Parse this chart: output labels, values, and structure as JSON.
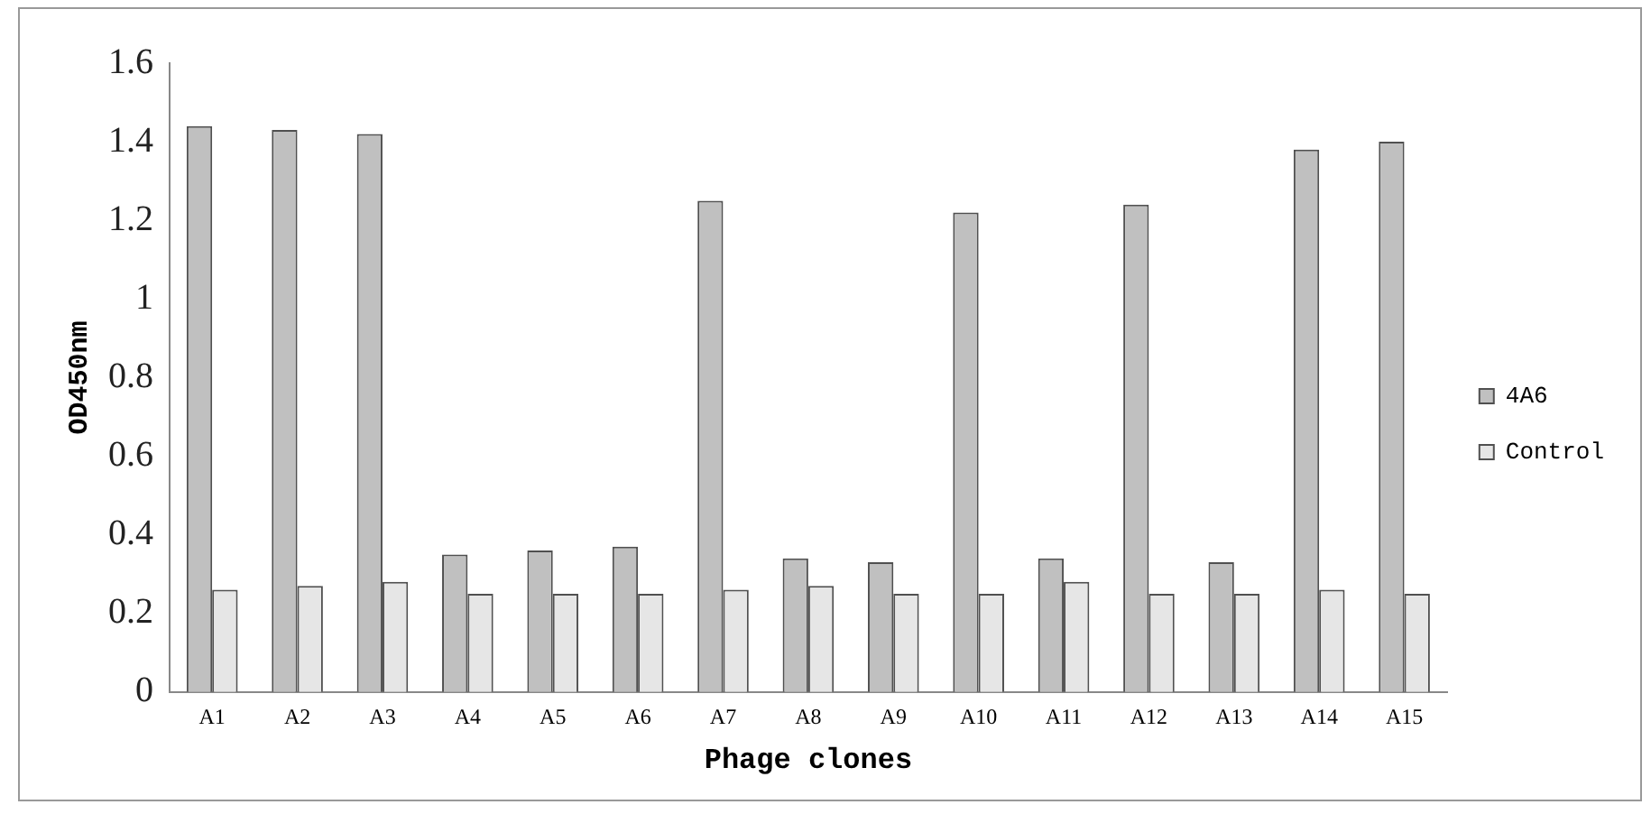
{
  "chart_data": {
    "type": "bar",
    "xlabel": "Phage clones",
    "ylabel": "OD450nm",
    "categories": [
      "A1",
      "A2",
      "A3",
      "A4",
      "A5",
      "A6",
      "A7",
      "A8",
      "A9",
      "A10",
      "A11",
      "A12",
      "A13",
      "A14",
      "A15"
    ],
    "series": [
      {
        "name": "4A6",
        "color": "#c0c0c0",
        "values": [
          1.44,
          1.43,
          1.42,
          0.35,
          0.36,
          0.37,
          1.25,
          0.34,
          0.33,
          1.22,
          0.34,
          1.24,
          0.33,
          1.38,
          1.4
        ]
      },
      {
        "name": "Control",
        "color": "#e6e6e6",
        "values": [
          0.26,
          0.27,
          0.28,
          0.25,
          0.25,
          0.25,
          0.26,
          0.27,
          0.25,
          0.25,
          0.28,
          0.25,
          0.25,
          0.26,
          0.25
        ]
      }
    ],
    "ylim": [
      0,
      1.6
    ],
    "yticks": [
      0,
      {
        "value": 0.2,
        "label": "0.2"
      },
      {
        "value": 0.4,
        "label": "0.4"
      },
      {
        "value": 0.6,
        "label": "0.6"
      },
      {
        "value": 0.8,
        "label": "0.8"
      },
      1,
      {
        "value": 1.2,
        "label": "1.2"
      },
      {
        "value": 1.4,
        "label": "1.4"
      },
      {
        "value": 1.6,
        "label": "1.6"
      }
    ],
    "grid": false,
    "legend": "right"
  }
}
